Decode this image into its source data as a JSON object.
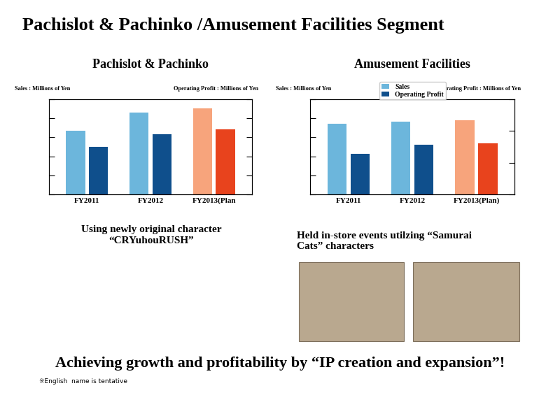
{
  "title": "Pachislot & Pachinko /Amusement Facilities Segment",
  "chart_data": [
    {
      "type": "bar",
      "title": "Pachislot & Pachinko",
      "ylabel": "Sales : Millions of Yen",
      "y2label": "Operating Profit : Millions of Yen",
      "categories": [
        "FY2011",
        "FY2012",
        "FY2013(Plan"
      ],
      "series": [
        {
          "values": [
            3.35,
            4.3,
            4.5
          ],
          "colors": [
            "#6cb6dc",
            "#6cb6dc",
            "#f7a47c"
          ]
        },
        {
          "values": [
            2.5,
            3.15,
            3.4
          ],
          "colors": [
            "#0f4f8c",
            "#0f4f8c",
            "#e8431d"
          ],
          "axis": "y2"
        }
      ],
      "ylim": [
        0,
        5
      ],
      "yticks": [
        0,
        1,
        2,
        3,
        4,
        5
      ],
      "y2lim": [
        0,
        5
      ],
      "y2ticks": [
        0,
        1,
        2,
        3,
        4,
        5
      ],
      "tick_labels": "x"
    },
    {
      "type": "bar",
      "title": "Amusement Facilities",
      "ylabel": "Sales : Millions of Yen",
      "y2label": "Operating Profit : Millions of Yen",
      "categories": [
        "FY2011",
        "FY2012",
        "FY2013(Plan)"
      ],
      "series": [
        {
          "name": "Sales",
          "values": [
            3.7,
            3.8,
            3.9
          ],
          "colors": [
            "#6cb6dc",
            "#6cb6dc",
            "#f7a47c"
          ]
        },
        {
          "name": "Operating Profit",
          "values": [
            1.28,
            1.57,
            1.6
          ],
          "colors": [
            "#0f4f8c",
            "#0f4f8c",
            "#e8431d"
          ],
          "axis": "y2"
        }
      ],
      "ylim": [
        0,
        5
      ],
      "yticks": [
        0,
        1,
        2,
        3,
        4,
        5
      ],
      "y2lim": [
        0,
        3
      ],
      "y2ticks": [
        0,
        1,
        2,
        3
      ],
      "tick_labels": "x",
      "legend": "upper center"
    }
  ],
  "captions": [
    "Using newly original character\n“CRYuhouRUSH”",
    "Held in-store events utilzing “Samurai\nCats” characters"
  ],
  "headline": "Achieving growth and profitability by “IP creation and expansion”!",
  "footnote": "※English  name is tentative"
}
